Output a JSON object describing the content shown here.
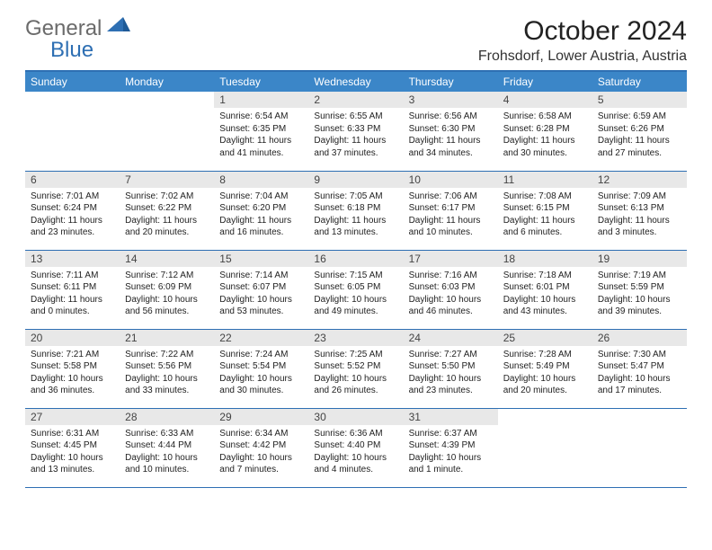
{
  "brand": {
    "part1": "General",
    "part2": "Blue"
  },
  "title": "October 2024",
  "location": "Frohsdorf, Lower Austria, Austria",
  "colors": {
    "header_bg": "#3b86c8",
    "border": "#2e6fb3",
    "daynum_bg": "#e8e8e8",
    "logo_gray": "#6b6b6b",
    "logo_blue": "#2e6fb3"
  },
  "typography": {
    "title_fontsize": 30,
    "location_fontsize": 16,
    "header_fontsize": 12,
    "daynum_fontsize": 12,
    "body_fontsize": 10
  },
  "day_headers": [
    "Sunday",
    "Monday",
    "Tuesday",
    "Wednesday",
    "Thursday",
    "Friday",
    "Saturday"
  ],
  "weeks": [
    [
      null,
      null,
      {
        "n": "1",
        "sr": "Sunrise: 6:54 AM",
        "ss": "Sunset: 6:35 PM",
        "d1": "Daylight: 11 hours",
        "d2": "and 41 minutes."
      },
      {
        "n": "2",
        "sr": "Sunrise: 6:55 AM",
        "ss": "Sunset: 6:33 PM",
        "d1": "Daylight: 11 hours",
        "d2": "and 37 minutes."
      },
      {
        "n": "3",
        "sr": "Sunrise: 6:56 AM",
        "ss": "Sunset: 6:30 PM",
        "d1": "Daylight: 11 hours",
        "d2": "and 34 minutes."
      },
      {
        "n": "4",
        "sr": "Sunrise: 6:58 AM",
        "ss": "Sunset: 6:28 PM",
        "d1": "Daylight: 11 hours",
        "d2": "and 30 minutes."
      },
      {
        "n": "5",
        "sr": "Sunrise: 6:59 AM",
        "ss": "Sunset: 6:26 PM",
        "d1": "Daylight: 11 hours",
        "d2": "and 27 minutes."
      }
    ],
    [
      {
        "n": "6",
        "sr": "Sunrise: 7:01 AM",
        "ss": "Sunset: 6:24 PM",
        "d1": "Daylight: 11 hours",
        "d2": "and 23 minutes."
      },
      {
        "n": "7",
        "sr": "Sunrise: 7:02 AM",
        "ss": "Sunset: 6:22 PM",
        "d1": "Daylight: 11 hours",
        "d2": "and 20 minutes."
      },
      {
        "n": "8",
        "sr": "Sunrise: 7:04 AM",
        "ss": "Sunset: 6:20 PM",
        "d1": "Daylight: 11 hours",
        "d2": "and 16 minutes."
      },
      {
        "n": "9",
        "sr": "Sunrise: 7:05 AM",
        "ss": "Sunset: 6:18 PM",
        "d1": "Daylight: 11 hours",
        "d2": "and 13 minutes."
      },
      {
        "n": "10",
        "sr": "Sunrise: 7:06 AM",
        "ss": "Sunset: 6:17 PM",
        "d1": "Daylight: 11 hours",
        "d2": "and 10 minutes."
      },
      {
        "n": "11",
        "sr": "Sunrise: 7:08 AM",
        "ss": "Sunset: 6:15 PM",
        "d1": "Daylight: 11 hours",
        "d2": "and 6 minutes."
      },
      {
        "n": "12",
        "sr": "Sunrise: 7:09 AM",
        "ss": "Sunset: 6:13 PM",
        "d1": "Daylight: 11 hours",
        "d2": "and 3 minutes."
      }
    ],
    [
      {
        "n": "13",
        "sr": "Sunrise: 7:11 AM",
        "ss": "Sunset: 6:11 PM",
        "d1": "Daylight: 11 hours",
        "d2": "and 0 minutes."
      },
      {
        "n": "14",
        "sr": "Sunrise: 7:12 AM",
        "ss": "Sunset: 6:09 PM",
        "d1": "Daylight: 10 hours",
        "d2": "and 56 minutes."
      },
      {
        "n": "15",
        "sr": "Sunrise: 7:14 AM",
        "ss": "Sunset: 6:07 PM",
        "d1": "Daylight: 10 hours",
        "d2": "and 53 minutes."
      },
      {
        "n": "16",
        "sr": "Sunrise: 7:15 AM",
        "ss": "Sunset: 6:05 PM",
        "d1": "Daylight: 10 hours",
        "d2": "and 49 minutes."
      },
      {
        "n": "17",
        "sr": "Sunrise: 7:16 AM",
        "ss": "Sunset: 6:03 PM",
        "d1": "Daylight: 10 hours",
        "d2": "and 46 minutes."
      },
      {
        "n": "18",
        "sr": "Sunrise: 7:18 AM",
        "ss": "Sunset: 6:01 PM",
        "d1": "Daylight: 10 hours",
        "d2": "and 43 minutes."
      },
      {
        "n": "19",
        "sr": "Sunrise: 7:19 AM",
        "ss": "Sunset: 5:59 PM",
        "d1": "Daylight: 10 hours",
        "d2": "and 39 minutes."
      }
    ],
    [
      {
        "n": "20",
        "sr": "Sunrise: 7:21 AM",
        "ss": "Sunset: 5:58 PM",
        "d1": "Daylight: 10 hours",
        "d2": "and 36 minutes."
      },
      {
        "n": "21",
        "sr": "Sunrise: 7:22 AM",
        "ss": "Sunset: 5:56 PM",
        "d1": "Daylight: 10 hours",
        "d2": "and 33 minutes."
      },
      {
        "n": "22",
        "sr": "Sunrise: 7:24 AM",
        "ss": "Sunset: 5:54 PM",
        "d1": "Daylight: 10 hours",
        "d2": "and 30 minutes."
      },
      {
        "n": "23",
        "sr": "Sunrise: 7:25 AM",
        "ss": "Sunset: 5:52 PM",
        "d1": "Daylight: 10 hours",
        "d2": "and 26 minutes."
      },
      {
        "n": "24",
        "sr": "Sunrise: 7:27 AM",
        "ss": "Sunset: 5:50 PM",
        "d1": "Daylight: 10 hours",
        "d2": "and 23 minutes."
      },
      {
        "n": "25",
        "sr": "Sunrise: 7:28 AM",
        "ss": "Sunset: 5:49 PM",
        "d1": "Daylight: 10 hours",
        "d2": "and 20 minutes."
      },
      {
        "n": "26",
        "sr": "Sunrise: 7:30 AM",
        "ss": "Sunset: 5:47 PM",
        "d1": "Daylight: 10 hours",
        "d2": "and 17 minutes."
      }
    ],
    [
      {
        "n": "27",
        "sr": "Sunrise: 6:31 AM",
        "ss": "Sunset: 4:45 PM",
        "d1": "Daylight: 10 hours",
        "d2": "and 13 minutes."
      },
      {
        "n": "28",
        "sr": "Sunrise: 6:33 AM",
        "ss": "Sunset: 4:44 PM",
        "d1": "Daylight: 10 hours",
        "d2": "and 10 minutes."
      },
      {
        "n": "29",
        "sr": "Sunrise: 6:34 AM",
        "ss": "Sunset: 4:42 PM",
        "d1": "Daylight: 10 hours",
        "d2": "and 7 minutes."
      },
      {
        "n": "30",
        "sr": "Sunrise: 6:36 AM",
        "ss": "Sunset: 4:40 PM",
        "d1": "Daylight: 10 hours",
        "d2": "and 4 minutes."
      },
      {
        "n": "31",
        "sr": "Sunrise: 6:37 AM",
        "ss": "Sunset: 4:39 PM",
        "d1": "Daylight: 10 hours",
        "d2": "and 1 minute."
      },
      null,
      null
    ]
  ]
}
